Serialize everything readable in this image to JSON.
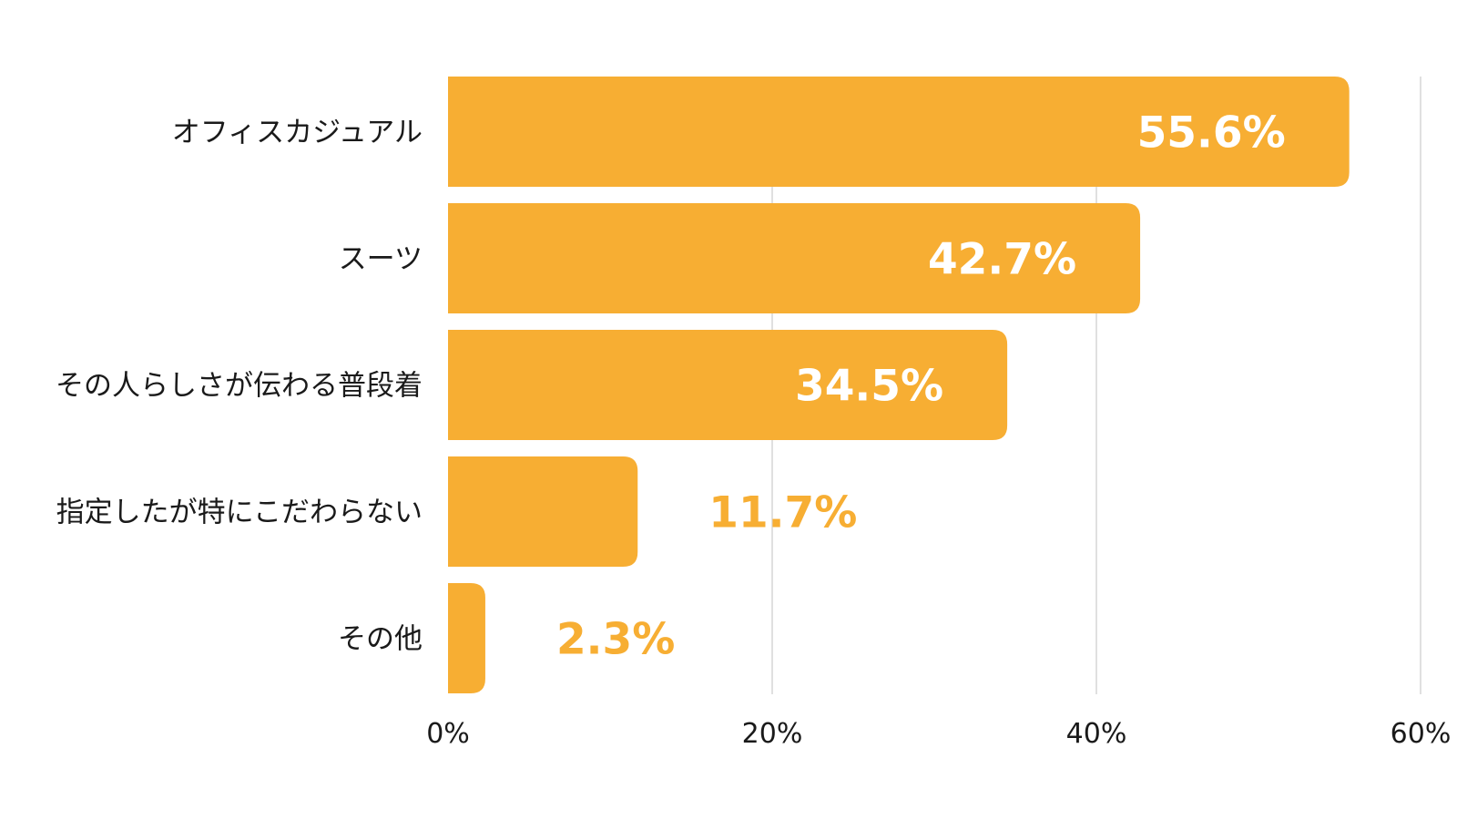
{
  "chart_data": {
    "type": "bar",
    "orientation": "horizontal",
    "categories": [
      "オフィスカジュアル",
      "スーツ",
      "その人らしさが伝わる普段着",
      "指定したが特にこだわらない",
      "その他"
    ],
    "values": [
      55.6,
      42.7,
      34.5,
      11.7,
      2.3
    ],
    "value_labels": [
      "55.6%",
      "42.7%",
      "34.5%",
      "11.7%",
      "2.3%"
    ],
    "xticks": [
      0,
      20,
      40,
      60
    ],
    "xtick_labels": [
      "0%",
      "20%",
      "40%",
      "60%"
    ],
    "xlim": [
      0,
      60
    ],
    "grid": "vertical",
    "title": "",
    "xlabel": "",
    "ylabel": "",
    "colors": {
      "bar": "#F7AE33",
      "label_inside": "#ffffff",
      "label_outside": "#F7AE33"
    }
  }
}
